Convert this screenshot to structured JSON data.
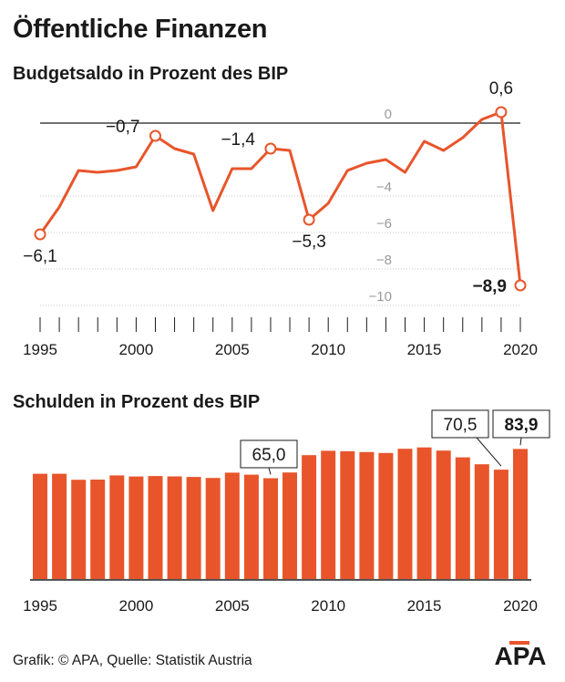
{
  "title": "Öffentliche Finanzen",
  "source": "Grafik: © APA, Quelle: Statistik Austria",
  "logo_text": "APA",
  "colors": {
    "accent": "#e8552b",
    "grid": "#c8c8c8",
    "axis": "#1a1a1a",
    "muted": "#9a9a9a"
  },
  "chart_data": [
    {
      "type": "line",
      "title": "Budgetsaldo in Prozent des BIP",
      "x": [
        1995,
        1996,
        1997,
        1998,
        1999,
        2000,
        2001,
        2002,
        2003,
        2004,
        2005,
        2006,
        2007,
        2008,
        2009,
        2010,
        2011,
        2012,
        2013,
        2014,
        2015,
        2016,
        2017,
        2018,
        2019,
        2020
      ],
      "values": [
        -6.1,
        -4.6,
        -2.6,
        -2.7,
        -2.6,
        -2.4,
        -0.7,
        -1.4,
        -1.7,
        -4.8,
        -2.5,
        -2.5,
        -1.4,
        -1.5,
        -5.3,
        -4.4,
        -2.6,
        -2.2,
        -2.0,
        -2.7,
        -1.0,
        -1.5,
        -0.8,
        0.2,
        0.6,
        -8.9
      ],
      "value_labels": [
        {
          "x": 1995,
          "text": "−6,1",
          "bold": false
        },
        {
          "x": 2001,
          "text": "−0,7",
          "bold": false
        },
        {
          "x": 2007,
          "text": "−1,4",
          "bold": false
        },
        {
          "x": 2009,
          "text": "−5,3",
          "bold": false
        },
        {
          "x": 2019,
          "text": "0,6",
          "bold": false
        },
        {
          "x": 2020,
          "text": "−8,9",
          "bold": true
        }
      ],
      "ylim": [
        -10,
        1
      ],
      "yticks": [
        0,
        -4,
        -6,
        -8,
        -10
      ],
      "ytick_labels": [
        "0",
        "−4",
        "−6",
        "−8",
        "−10"
      ],
      "xtick_labels": [
        "1995",
        "2000",
        "2005",
        "2010",
        "2015",
        "2020"
      ],
      "xtick_years": [
        1995,
        2000,
        2005,
        2010,
        2015,
        2020
      ],
      "grid": true
    },
    {
      "type": "bar",
      "title": "Schulden in Prozent des BIP",
      "categories": [
        1995,
        1996,
        1997,
        1998,
        1999,
        2000,
        2001,
        2002,
        2003,
        2004,
        2005,
        2006,
        2007,
        2008,
        2009,
        2010,
        2011,
        2012,
        2013,
        2014,
        2015,
        2016,
        2017,
        2018,
        2019,
        2020
      ],
      "values": [
        67.9,
        67.9,
        64.0,
        64.1,
        66.8,
        66.1,
        66.4,
        66.2,
        65.8,
        65.2,
        68.6,
        67.3,
        65.0,
        68.7,
        79.9,
        82.7,
        82.4,
        81.9,
        81.3,
        84.0,
        84.9,
        82.8,
        78.5,
        74.0,
        70.5,
        83.9
      ],
      "value_labels": [
        {
          "x": 2007,
          "text": "65,0",
          "bold": false
        },
        {
          "x": 2019,
          "text": "70,5",
          "bold": false
        },
        {
          "x": 2020,
          "text": "83,9",
          "bold": true
        }
      ],
      "ylim": [
        0,
        90
      ],
      "xtick_labels": [
        "1995",
        "2000",
        "2005",
        "2010",
        "2015",
        "2020"
      ],
      "xtick_years": [
        1995,
        2000,
        2005,
        2010,
        2015,
        2020
      ],
      "grid": false
    }
  ]
}
